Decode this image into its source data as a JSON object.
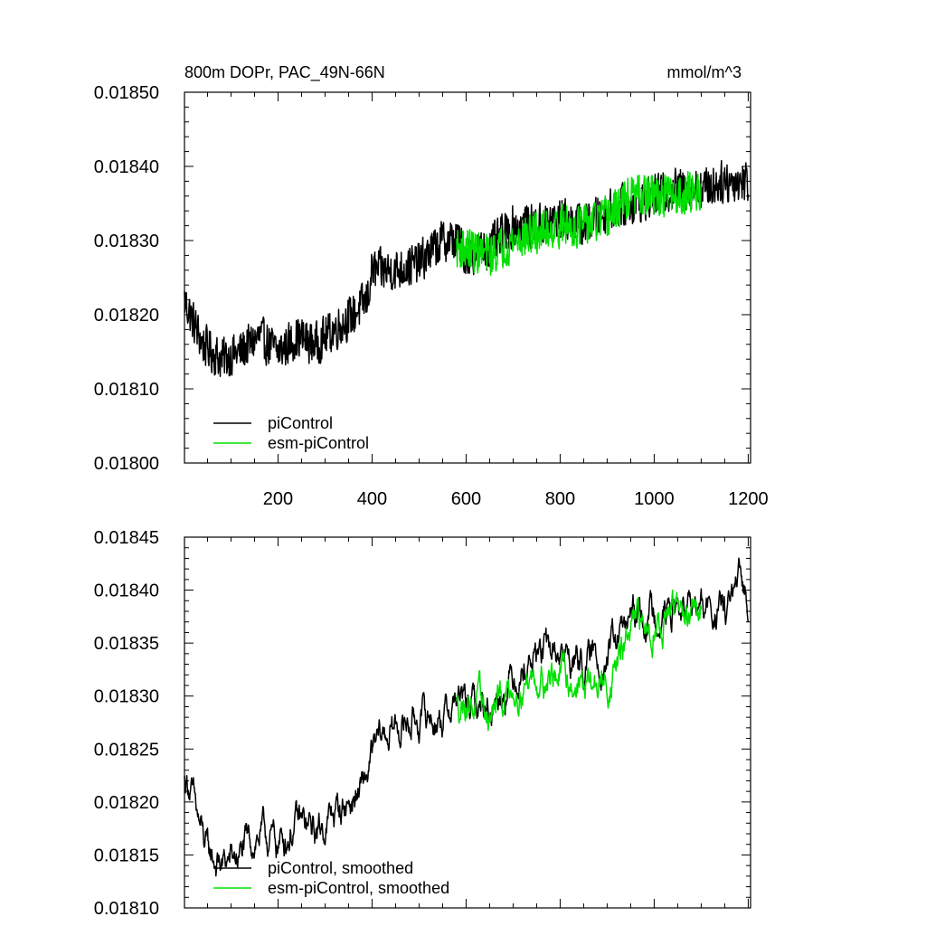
{
  "chart_data": [
    {
      "type": "line",
      "title": "800m DOPr, PAC_49N-66N",
      "units": "mmol/m^3",
      "xlabel": "",
      "ylabel": "",
      "xlim": [
        1,
        1205
      ],
      "ylim": [
        0.018,
        0.0185
      ],
      "xticks": [
        200,
        400,
        600,
        800,
        1000,
        1200
      ],
      "xtick_labels": [
        "200",
        "400",
        "600",
        "800",
        "1000",
        "1200"
      ],
      "yticks": [
        0.018,
        0.0181,
        0.0182,
        0.0183,
        0.0184,
        0.0185
      ],
      "ytick_labels": [
        "0.01800",
        "0.01810",
        "0.01820",
        "0.01830",
        "0.01840",
        "0.01850"
      ],
      "grid": false,
      "legend_position": "bottom-left",
      "series": [
        {
          "name": "piControl",
          "color": "#000000",
          "x_start": 1,
          "x_end": 1200,
          "anchors_x": [
            1,
            20,
            40,
            60,
            80,
            120,
            160,
            200,
            240,
            280,
            320,
            360,
            390,
            400,
            450,
            500,
            550,
            580,
            600,
            650,
            700,
            750,
            800,
            850,
            900,
            950,
            1000,
            1050,
            1100,
            1150,
            1200
          ],
          "anchors_y": [
            0.01822,
            0.01819,
            0.01816,
            0.01815,
            0.01814,
            0.01815,
            0.01817,
            0.01815,
            0.01817,
            0.01816,
            0.01818,
            0.0182,
            0.01822,
            0.01826,
            0.01826,
            0.01827,
            0.0183,
            0.0183,
            0.01828,
            0.01829,
            0.01832,
            0.01832,
            0.01833,
            0.01832,
            0.01834,
            0.01835,
            0.01836,
            0.01837,
            0.01837,
            0.01838,
            0.01838
          ],
          "noise": 2.8e-05
        },
        {
          "name": "esm-piControl",
          "color": "#00e000",
          "x_start": 580,
          "x_end": 1100,
          "anchors_x": [
            580,
            600,
            650,
            700,
            750,
            800,
            850,
            900,
            950,
            1000,
            1050,
            1100
          ],
          "anchors_y": [
            0.01829,
            0.01829,
            0.01828,
            0.0183,
            0.01831,
            0.01832,
            0.01832,
            0.01833,
            0.01836,
            0.01836,
            0.01836,
            0.01837
          ],
          "noise": 2.8e-05
        }
      ]
    },
    {
      "type": "line",
      "title": "",
      "units": "",
      "xlabel": "",
      "ylabel": "",
      "xlim": [
        1,
        1205
      ],
      "ylim": [
        0.0181,
        0.01845
      ],
      "xticks": [
        200,
        400,
        600,
        800,
        1000,
        1200
      ],
      "xtick_labels": [],
      "yticks": [
        0.0181,
        0.01815,
        0.0182,
        0.01825,
        0.0183,
        0.01835,
        0.0184,
        0.01845
      ],
      "ytick_labels": [
        "0.01810",
        "0.01815",
        "0.01820",
        "0.01825",
        "0.01830",
        "0.01835",
        "0.01840",
        "0.01845"
      ],
      "grid": false,
      "legend_position": "bottom-left",
      "series": [
        {
          "name": "piControl, smoothed",
          "color": "#000000",
          "x_start": 1,
          "x_end": 1200,
          "anchors_x": [
            1,
            10,
            30,
            50,
            80,
            120,
            160,
            200,
            240,
            280,
            320,
            350,
            380,
            400,
            420,
            450,
            500,
            550,
            580,
            600,
            650,
            700,
            750,
            800,
            850,
            900,
            950,
            1000,
            1050,
            1100,
            1150,
            1180,
            1200
          ],
          "anchors_y": [
            0.01822,
            0.01822,
            0.01818,
            0.01815,
            0.01814,
            0.01815,
            0.01817,
            0.01816,
            0.01818,
            0.01817,
            0.01819,
            0.0182,
            0.01821,
            0.01824,
            0.01826,
            0.01827,
            0.01828,
            0.01828,
            0.0183,
            0.01829,
            0.01829,
            0.01832,
            0.01834,
            0.01834,
            0.01833,
            0.01834,
            0.01837,
            0.01838,
            0.01838,
            0.01838,
            0.01838,
            0.0184,
            0.01839
          ],
          "noise": 1.8e-05
        },
        {
          "name": "esm-piControl, smoothed",
          "color": "#00e000",
          "x_start": 580,
          "x_end": 1100,
          "anchors_x": [
            580,
            600,
            650,
            700,
            750,
            800,
            850,
            900,
            950,
            1000,
            1050,
            1100
          ],
          "anchors_y": [
            0.01829,
            0.0183,
            0.01828,
            0.01831,
            0.01832,
            0.01832,
            0.01831,
            0.01831,
            0.01836,
            0.01837,
            0.01838,
            0.01837
          ],
          "noise": 1.8e-05
        }
      ]
    }
  ]
}
